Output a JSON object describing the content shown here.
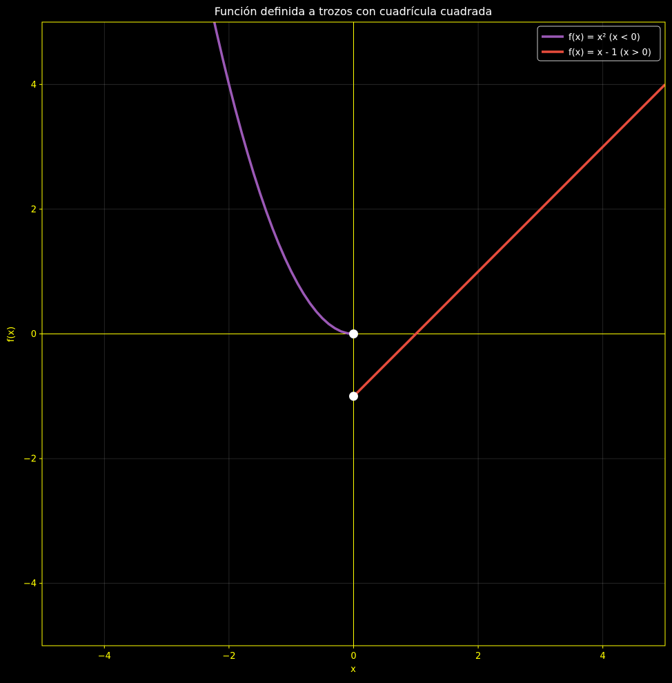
{
  "chart_data": {
    "type": "line",
    "title": "Función definida a trozos con cuadrícula cuadrada",
    "xlabel": "x",
    "ylabel": "f(x)",
    "xlim": [
      -5,
      5
    ],
    "ylim": [
      -5,
      5
    ],
    "x_ticks": [
      -4,
      -2,
      0,
      2,
      4
    ],
    "y_ticks": [
      -4,
      -2,
      0,
      2,
      4
    ],
    "x_tick_labels": [
      "−4",
      "−2",
      "0",
      "2",
      "4"
    ],
    "y_tick_labels": [
      "−4",
      "−2",
      "0",
      "2",
      "4"
    ],
    "grid": true,
    "axis_color": "#ffff00",
    "background": "#000000",
    "legend": {
      "placement": "top-right",
      "entries": [
        {
          "label": "f(x) = x² (x < 0)",
          "color": "#9b59b6"
        },
        {
          "label": "f(x) = x - 1 (x > 0)",
          "color": "#e74c3c"
        }
      ]
    },
    "series": [
      {
        "name": "f(x) = x² (x < 0)",
        "color": "#9b59b6",
        "x": [
          -2.3,
          -2.2,
          -2.1,
          -2.0,
          -1.9,
          -1.8,
          -1.7,
          -1.6,
          -1.5,
          -1.4,
          -1.3,
          -1.2,
          -1.1,
          -1.0,
          -0.9,
          -0.8,
          -0.7,
          -0.6,
          -0.5,
          -0.4,
          -0.3,
          -0.2,
          -0.1,
          0.0
        ],
        "y": [
          5.29,
          4.84,
          4.41,
          4.0,
          3.61,
          3.24,
          2.89,
          2.56,
          2.25,
          1.96,
          1.69,
          1.44,
          1.21,
          1.0,
          0.81,
          0.64,
          0.49,
          0.36,
          0.25,
          0.16,
          0.09,
          0.04,
          0.01,
          0.0
        ]
      },
      {
        "name": "f(x) = x - 1 (x > 0)",
        "color": "#e74c3c",
        "x": [
          0,
          5
        ],
        "y": [
          -1,
          4
        ]
      }
    ],
    "markers": [
      {
        "x": 0,
        "y": 0,
        "color": "#ffffff"
      },
      {
        "x": 0,
        "y": -1,
        "color": "#ffffff"
      }
    ]
  }
}
